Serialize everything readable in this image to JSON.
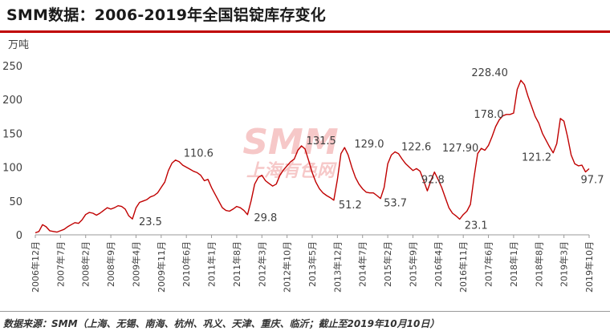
{
  "title": "SMM数据：2006-2019年全国铝锭库存变化",
  "source": "数据来源：SMM（上海、无锡、南海、杭州、巩义、天津、重庆、临沂；截止至2019年10月10日）",
  "watermark": {
    "brand": "SMM",
    "name": "上海有色网",
    "color": "#f4b6b6"
  },
  "colors": {
    "line": "#c00000",
    "title_rule": "#c00000",
    "axis": "#999999",
    "text": "#404040"
  },
  "chart_data": {
    "type": "line",
    "ylabel": "万吨",
    "ylim": [
      0,
      250
    ],
    "yticks": [
      0,
      50,
      100,
      150,
      200,
      250
    ],
    "grid": false,
    "xlim": [
      "2006-12",
      "2019-10"
    ],
    "xticks": [
      "2006年12月",
      "2007年7月",
      "2008年2月",
      "2008年9月",
      "2009年4月",
      "2009年11月",
      "2010年6月",
      "2011年1月",
      "2011年8月",
      "2012年3月",
      "2012年10月",
      "2013年5月",
      "2013年12月",
      "2014年7月",
      "2015年2月",
      "2015年9月",
      "2016年4月",
      "2016年11月",
      "2017年6月",
      "2018年1月",
      "2018年8月",
      "2019年3月",
      "2019年10月"
    ],
    "series": [
      {
        "values": [
          [
            "2006-12",
            3
          ],
          [
            "2007-01",
            5
          ],
          [
            "2007-02",
            15
          ],
          [
            "2007-03",
            12
          ],
          [
            "2007-04",
            6
          ],
          [
            "2007-05",
            5
          ],
          [
            "2007-06",
            4
          ],
          [
            "2007-07",
            6
          ],
          [
            "2007-08",
            8
          ],
          [
            "2007-09",
            12
          ],
          [
            "2007-10",
            15
          ],
          [
            "2007-11",
            18
          ],
          [
            "2007-12",
            17
          ],
          [
            "2008-01",
            22
          ],
          [
            "2008-02",
            30
          ],
          [
            "2008-03",
            33
          ],
          [
            "2008-04",
            32
          ],
          [
            "2008-05",
            29
          ],
          [
            "2008-06",
            32
          ],
          [
            "2008-07",
            36
          ],
          [
            "2008-08",
            40
          ],
          [
            "2008-09",
            38
          ],
          [
            "2008-10",
            40
          ],
          [
            "2008-11",
            43
          ],
          [
            "2008-12",
            42
          ],
          [
            "2009-01",
            38
          ],
          [
            "2009-02",
            28
          ],
          [
            "2009-03",
            23.5
          ],
          [
            "2009-04",
            40
          ],
          [
            "2009-05",
            48
          ],
          [
            "2009-06",
            50
          ],
          [
            "2009-07",
            52
          ],
          [
            "2009-08",
            56
          ],
          [
            "2009-09",
            58
          ],
          [
            "2009-10",
            62
          ],
          [
            "2009-11",
            70
          ],
          [
            "2009-12",
            78
          ],
          [
            "2010-01",
            95
          ],
          [
            "2010-02",
            106
          ],
          [
            "2010-03",
            110.6
          ],
          [
            "2010-04",
            108
          ],
          [
            "2010-05",
            103
          ],
          [
            "2010-06",
            100
          ],
          [
            "2010-07",
            97
          ],
          [
            "2010-08",
            94
          ],
          [
            "2010-09",
            92
          ],
          [
            "2010-10",
            88
          ],
          [
            "2010-11",
            80
          ],
          [
            "2010-12",
            82
          ],
          [
            "2011-01",
            70
          ],
          [
            "2011-02",
            60
          ],
          [
            "2011-03",
            50
          ],
          [
            "2011-04",
            40
          ],
          [
            "2011-05",
            36
          ],
          [
            "2011-06",
            35
          ],
          [
            "2011-07",
            38
          ],
          [
            "2011-08",
            42
          ],
          [
            "2011-09",
            40
          ],
          [
            "2011-10",
            36
          ],
          [
            "2011-11",
            29.8
          ],
          [
            "2011-12",
            50
          ],
          [
            "2012-01",
            75
          ],
          [
            "2012-02",
            85
          ],
          [
            "2012-03",
            88
          ],
          [
            "2012-04",
            80
          ],
          [
            "2012-05",
            76
          ],
          [
            "2012-06",
            72
          ],
          [
            "2012-07",
            75
          ],
          [
            "2012-08",
            88
          ],
          [
            "2012-09",
            96
          ],
          [
            "2012-10",
            102
          ],
          [
            "2012-11",
            108
          ],
          [
            "2012-12",
            112
          ],
          [
            "2013-01",
            125
          ],
          [
            "2013-02",
            131.5
          ],
          [
            "2013-03",
            127
          ],
          [
            "2013-04",
            110
          ],
          [
            "2013-05",
            92
          ],
          [
            "2013-06",
            78
          ],
          [
            "2013-07",
            68
          ],
          [
            "2013-08",
            62
          ],
          [
            "2013-09",
            58
          ],
          [
            "2013-10",
            55
          ],
          [
            "2013-11",
            51.2
          ],
          [
            "2013-12",
            82
          ],
          [
            "2014-01",
            120
          ],
          [
            "2014-02",
            129.0
          ],
          [
            "2014-03",
            118
          ],
          [
            "2014-04",
            100
          ],
          [
            "2014-05",
            85
          ],
          [
            "2014-06",
            75
          ],
          [
            "2014-07",
            68
          ],
          [
            "2014-08",
            63
          ],
          [
            "2014-09",
            62
          ],
          [
            "2014-10",
            62
          ],
          [
            "2014-11",
            58
          ],
          [
            "2014-12",
            53.7
          ],
          [
            "2015-01",
            70
          ],
          [
            "2015-02",
            105
          ],
          [
            "2015-03",
            118
          ],
          [
            "2015-04",
            122.6
          ],
          [
            "2015-05",
            120
          ],
          [
            "2015-06",
            112
          ],
          [
            "2015-07",
            105
          ],
          [
            "2015-08",
            100
          ],
          [
            "2015-09",
            95
          ],
          [
            "2015-10",
            98
          ],
          [
            "2015-11",
            94
          ],
          [
            "2015-12",
            80
          ],
          [
            "2016-01",
            65
          ],
          [
            "2016-02",
            80
          ],
          [
            "2016-03",
            92.8
          ],
          [
            "2016-04",
            82
          ],
          [
            "2016-05",
            70
          ],
          [
            "2016-06",
            55
          ],
          [
            "2016-07",
            40
          ],
          [
            "2016-08",
            32
          ],
          [
            "2016-09",
            28
          ],
          [
            "2016-10",
            23.1
          ],
          [
            "2016-11",
            30
          ],
          [
            "2016-12",
            35
          ],
          [
            "2017-01",
            45
          ],
          [
            "2017-02",
            85
          ],
          [
            "2017-03",
            120
          ],
          [
            "2017-04",
            127.9
          ],
          [
            "2017-05",
            125
          ],
          [
            "2017-06",
            132
          ],
          [
            "2017-07",
            145
          ],
          [
            "2017-08",
            160
          ],
          [
            "2017-09",
            170
          ],
          [
            "2017-10",
            176
          ],
          [
            "2017-11",
            178.0
          ],
          [
            "2017-12",
            178
          ],
          [
            "2018-01",
            180
          ],
          [
            "2018-02",
            215
          ],
          [
            "2018-03",
            228.4
          ],
          [
            "2018-04",
            222
          ],
          [
            "2018-05",
            205
          ],
          [
            "2018-06",
            190
          ],
          [
            "2018-07",
            175
          ],
          [
            "2018-08",
            165
          ],
          [
            "2018-09",
            150
          ],
          [
            "2018-10",
            140
          ],
          [
            "2018-11",
            130
          ],
          [
            "2018-12",
            121.2
          ],
          [
            "2019-01",
            135
          ],
          [
            "2019-02",
            172
          ],
          [
            "2019-03",
            168
          ],
          [
            "2019-04",
            145
          ],
          [
            "2019-05",
            118
          ],
          [
            "2019-06",
            105
          ],
          [
            "2019-07",
            102
          ],
          [
            "2019-08",
            103
          ],
          [
            "2019-09",
            93
          ],
          [
            "2019-10",
            97.7
          ]
        ]
      }
    ],
    "annotations": [
      {
        "text": "23.5",
        "x": "2009-03",
        "y": 23.5
      },
      {
        "text": "110.6",
        "x": "2010-03",
        "y": 110.6
      },
      {
        "text": "29.8",
        "x": "2011-11",
        "y": 29.8
      },
      {
        "text": "131.5",
        "x": "2013-02",
        "y": 131.5
      },
      {
        "text": "51.2",
        "x": "2013-11",
        "y": 51.2
      },
      {
        "text": "129.0",
        "x": "2014-02",
        "y": 129.0
      },
      {
        "text": "53.7",
        "x": "2014-12",
        "y": 53.7
      },
      {
        "text": "122.6",
        "x": "2015-04",
        "y": 122.6
      },
      {
        "text": "92.8",
        "x": "2016-03",
        "y": 92.8
      },
      {
        "text": "23.1",
        "x": "2016-10",
        "y": 23.1
      },
      {
        "text": "127.90",
        "x": "2017-04",
        "y": 127.9
      },
      {
        "text": "178.0",
        "x": "2017-11",
        "y": 178.0
      },
      {
        "text": "228.40",
        "x": "2018-03",
        "y": 228.4
      },
      {
        "text": "121.2",
        "x": "2018-12",
        "y": 121.2
      },
      {
        "text": "97.7",
        "x": "2019-10",
        "y": 97.7
      }
    ]
  }
}
